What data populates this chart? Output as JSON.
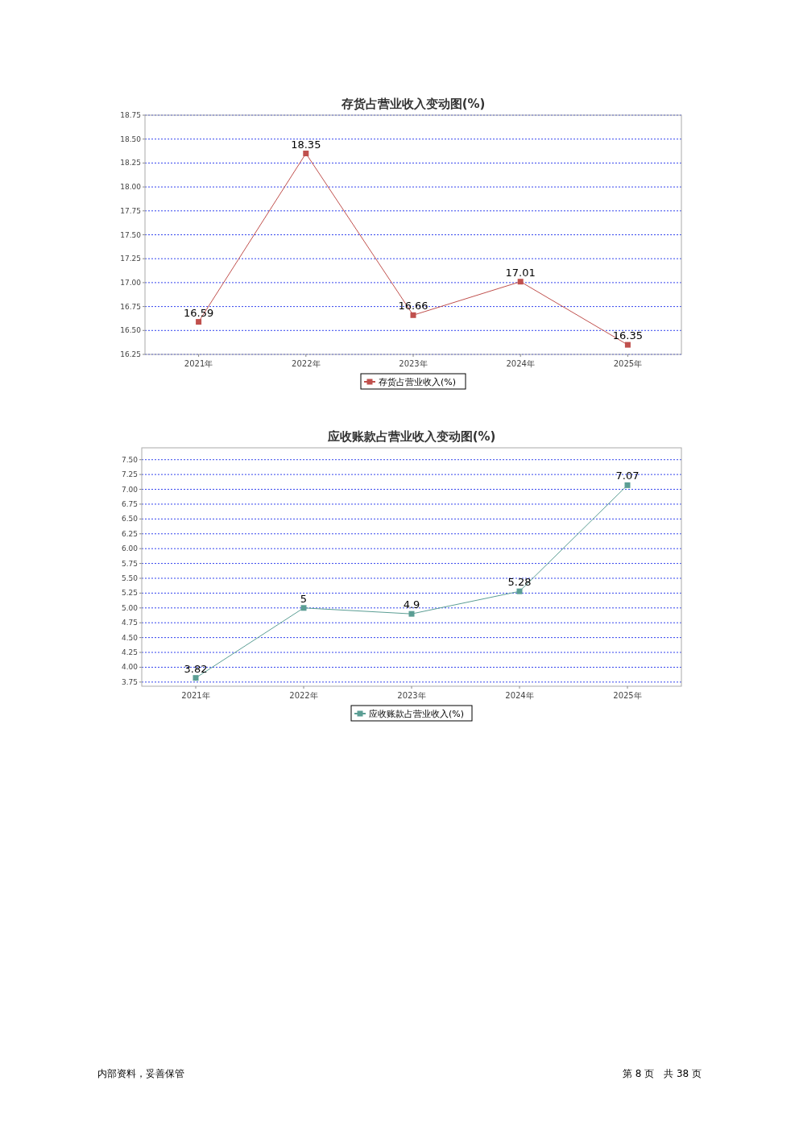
{
  "chart_data": [
    {
      "type": "line",
      "title": "存货占营业收入变动图(%)",
      "categories": [
        "2021年",
        "2022年",
        "2023年",
        "2024年",
        "2025年"
      ],
      "series": [
        {
          "name": "存货占营业收入(%)",
          "color": "#c0504d",
          "values": [
            16.59,
            18.35,
            16.66,
            17.01,
            16.35
          ]
        }
      ],
      "ylim": [
        16.25,
        18.75
      ],
      "yticks": [
        {
          "value": 16.25,
          "label": "16.25"
        },
        {
          "value": 16.5,
          "label": "16.50"
        },
        {
          "value": 16.75,
          "label": "16.75"
        },
        {
          "value": 17,
          "label": "17.00"
        },
        {
          "value": 17.25,
          "label": "17.25"
        },
        {
          "value": 17.5,
          "label": "17.50"
        },
        {
          "value": 17.75,
          "label": "17.75"
        },
        {
          "value": 18,
          "label": "18.00"
        },
        {
          "value": 18.25,
          "label": "18.25"
        },
        {
          "value": 18.5,
          "label": "18.50"
        },
        {
          "value": 18.75,
          "label": "18.75"
        }
      ],
      "grid": "y",
      "legend": "bottom",
      "marker": "square",
      "data_labels": true
    },
    {
      "type": "line",
      "title": "应收账款占营业收入变动图(%)",
      "categories": [
        "2021年",
        "2022年",
        "2023年",
        "2024年",
        "2025年"
      ],
      "series": [
        {
          "name": "应收账款占营业收入(%)",
          "color": "#5b9e94",
          "values": [
            3.82,
            5,
            4.9,
            5.28,
            7.07
          ]
        }
      ],
      "ylim": [
        3.68,
        7.7
      ],
      "yticks": [
        {
          "value": 3.75,
          "label": "3.75"
        },
        {
          "value": 4,
          "label": "4.00"
        },
        {
          "value": 4.25,
          "label": "4.25"
        },
        {
          "value": 4.5,
          "label": "4.50"
        },
        {
          "value": 4.75,
          "label": "4.75"
        },
        {
          "value": 5,
          "label": "5.00"
        },
        {
          "value": 5.25,
          "label": "5.25"
        },
        {
          "value": 5.5,
          "label": "5.50"
        },
        {
          "value": 5.75,
          "label": "5.75"
        },
        {
          "value": 6,
          "label": "6.00"
        },
        {
          "value": 6.25,
          "label": "6.25"
        },
        {
          "value": 6.5,
          "label": "6.50"
        },
        {
          "value": 6.75,
          "label": "6.75"
        },
        {
          "value": 7,
          "label": "7.00"
        },
        {
          "value": 7.25,
          "label": "7.25"
        },
        {
          "value": 7.5,
          "label": "7.50"
        }
      ],
      "grid": "y",
      "legend": "bottom",
      "marker": "square",
      "data_labels": true,
      "annotations": [
        "内部资料，妥善保管",
        "第 8 页　共 38 页"
      ]
    }
  ]
}
